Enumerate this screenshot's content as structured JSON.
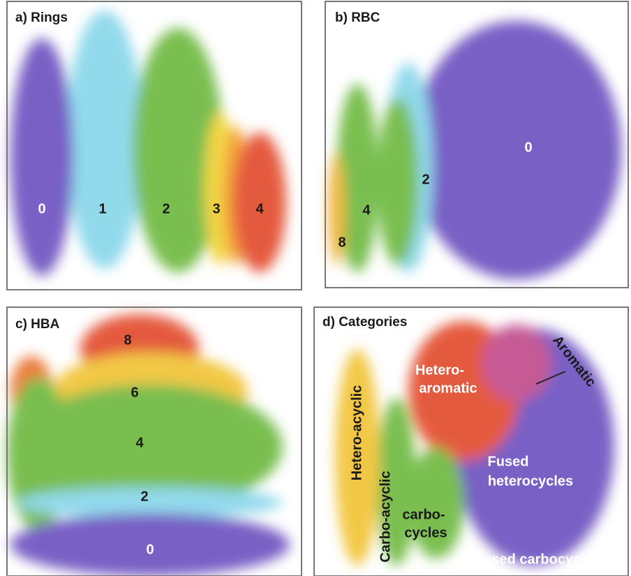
{
  "panels": [
    {
      "title": "a) Rings",
      "labels": [
        "0",
        "1",
        "2",
        "3",
        "4"
      ]
    },
    {
      "title": "b) RBC",
      "labels": [
        "0",
        "2",
        "4",
        "8"
      ]
    },
    {
      "title": "c) HBA",
      "labels": [
        "8",
        "6",
        "4",
        "2",
        "0"
      ]
    },
    {
      "title": "d) Categories",
      "labels": [
        "Hetero-acyclic",
        "Carbo-acyclic",
        "Hetero-",
        "aromatic",
        "carbo-",
        "cycles",
        "Aromatic",
        "Fused",
        "heterocycles",
        "Fused carbocycles"
      ]
    }
  ]
}
